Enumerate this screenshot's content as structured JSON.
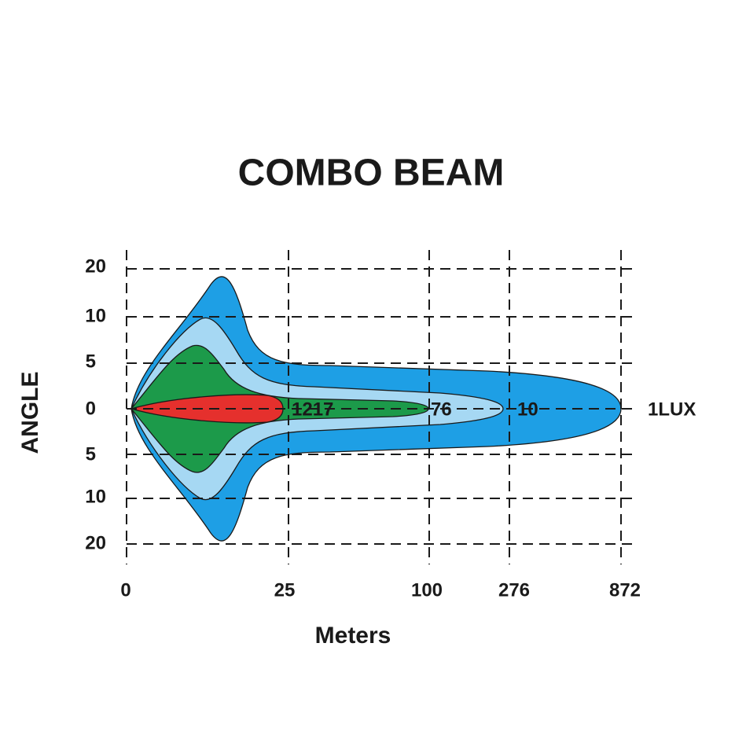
{
  "title": "COMBO  BEAM",
  "y_axis_label": "ANGLE",
  "x_axis_label": "Meters",
  "y_tick_labels": [
    "20",
    "10",
    "5",
    "0",
    "5",
    "10",
    "20"
  ],
  "x_tick_labels": [
    "0",
    "25",
    "100",
    "276",
    "872"
  ],
  "zone_labels": [
    "1217",
    "76",
    "10",
    "1LUX"
  ]
}
